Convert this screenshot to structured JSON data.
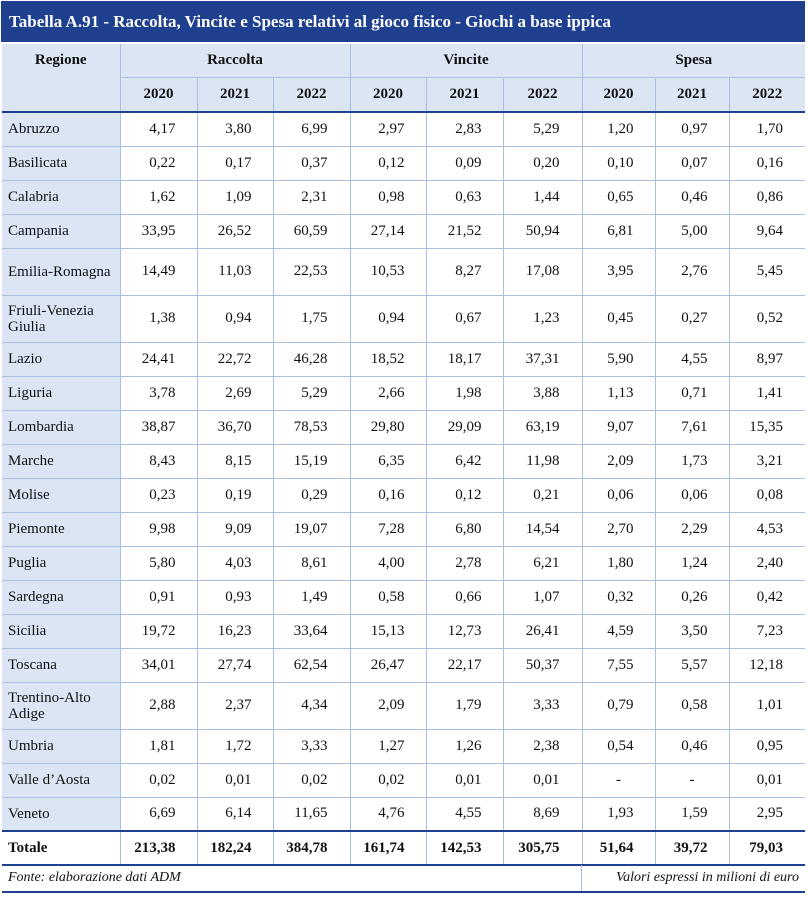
{
  "title": "Tabella A.91 - Raccolta, Vincite e Spesa relativi al gioco fisico - Giochi a base ippica",
  "headers": {
    "region": "Regione",
    "groups": [
      "Raccolta",
      "Vincite",
      "Spesa"
    ],
    "years": [
      "2020",
      "2021",
      "2022"
    ]
  },
  "rows": [
    {
      "region": "Abruzzo",
      "values": [
        "4,17",
        "3,80",
        "6,99",
        "2,97",
        "2,83",
        "5,29",
        "1,20",
        "0,97",
        "1,70"
      ]
    },
    {
      "region": "Basilicata",
      "values": [
        "0,22",
        "0,17",
        "0,37",
        "0,12",
        "0,09",
        "0,20",
        "0,10",
        "0,07",
        "0,16"
      ]
    },
    {
      "region": "Calabria",
      "values": [
        "1,62",
        "1,09",
        "2,31",
        "0,98",
        "0,63",
        "1,44",
        "0,65",
        "0,46",
        "0,86"
      ]
    },
    {
      "region": "Campania",
      "values": [
        "33,95",
        "26,52",
        "60,59",
        "27,14",
        "21,52",
        "50,94",
        "6,81",
        "5,00",
        "9,64"
      ]
    },
    {
      "region": "Emilia-Romagna",
      "values": [
        "14,49",
        "11,03",
        "22,53",
        "10,53",
        "8,27",
        "17,08",
        "3,95",
        "2,76",
        "5,45"
      ]
    },
    {
      "region": "Friuli-Venezia Giulia",
      "values": [
        "1,38",
        "0,94",
        "1,75",
        "0,94",
        "0,67",
        "1,23",
        "0,45",
        "0,27",
        "0,52"
      ]
    },
    {
      "region": "Lazio",
      "values": [
        "24,41",
        "22,72",
        "46,28",
        "18,52",
        "18,17",
        "37,31",
        "5,90",
        "4,55",
        "8,97"
      ]
    },
    {
      "region": "Liguria",
      "values": [
        "3,78",
        "2,69",
        "5,29",
        "2,66",
        "1,98",
        "3,88",
        "1,13",
        "0,71",
        "1,41"
      ]
    },
    {
      "region": "Lombardia",
      "values": [
        "38,87",
        "36,70",
        "78,53",
        "29,80",
        "29,09",
        "63,19",
        "9,07",
        "7,61",
        "15,35"
      ]
    },
    {
      "region": "Marche",
      "values": [
        "8,43",
        "8,15",
        "15,19",
        "6,35",
        "6,42",
        "11,98",
        "2,09",
        "1,73",
        "3,21"
      ]
    },
    {
      "region": "Molise",
      "values": [
        "0,23",
        "0,19",
        "0,29",
        "0,16",
        "0,12",
        "0,21",
        "0,06",
        "0,06",
        "0,08"
      ]
    },
    {
      "region": "Piemonte",
      "values": [
        "9,98",
        "9,09",
        "19,07",
        "7,28",
        "6,80",
        "14,54",
        "2,70",
        "2,29",
        "4,53"
      ]
    },
    {
      "region": "Puglia",
      "values": [
        "5,80",
        "4,03",
        "8,61",
        "4,00",
        "2,78",
        "6,21",
        "1,80",
        "1,24",
        "2,40"
      ]
    },
    {
      "region": "Sardegna",
      "values": [
        "0,91",
        "0,93",
        "1,49",
        "0,58",
        "0,66",
        "1,07",
        "0,32",
        "0,26",
        "0,42"
      ]
    },
    {
      "region": "Sicilia",
      "values": [
        "19,72",
        "16,23",
        "33,64",
        "15,13",
        "12,73",
        "26,41",
        "4,59",
        "3,50",
        "7,23"
      ]
    },
    {
      "region": "Toscana",
      "values": [
        "34,01",
        "27,74",
        "62,54",
        "26,47",
        "22,17",
        "50,37",
        "7,55",
        "5,57",
        "12,18"
      ]
    },
    {
      "region": "Trentino-Alto Adige",
      "values": [
        "2,88",
        "2,37",
        "4,34",
        "2,09",
        "1,79",
        "3,33",
        "0,79",
        "0,58",
        "1,01"
      ]
    },
    {
      "region": "Umbria",
      "values": [
        "1,81",
        "1,72",
        "3,33",
        "1,27",
        "1,26",
        "2,38",
        "0,54",
        "0,46",
        "0,95"
      ]
    },
    {
      "region": "Valle d’Aosta",
      "values": [
        "0,02",
        "0,01",
        "0,02",
        "0,02",
        "0,01",
        "0,01",
        "-",
        "-",
        "0,01"
      ]
    },
    {
      "region": "Veneto",
      "values": [
        "6,69",
        "6,14",
        "11,65",
        "4,76",
        "4,55",
        "8,69",
        "1,93",
        "1,59",
        "2,95"
      ]
    }
  ],
  "total": {
    "region": "Totale",
    "values": [
      "213,38",
      "182,24",
      "384,78",
      "161,74",
      "142,53",
      "305,75",
      "51,64",
      "39,72",
      "79,03"
    ]
  },
  "footer": {
    "source": "Fonte: elaborazione dati ADM",
    "unit": "Valori espressi in milioni di euro"
  },
  "colors": {
    "header_bg": "#1f3f8f",
    "cell_bg": "#dbe5f4",
    "grid": "#a9bfe0"
  }
}
